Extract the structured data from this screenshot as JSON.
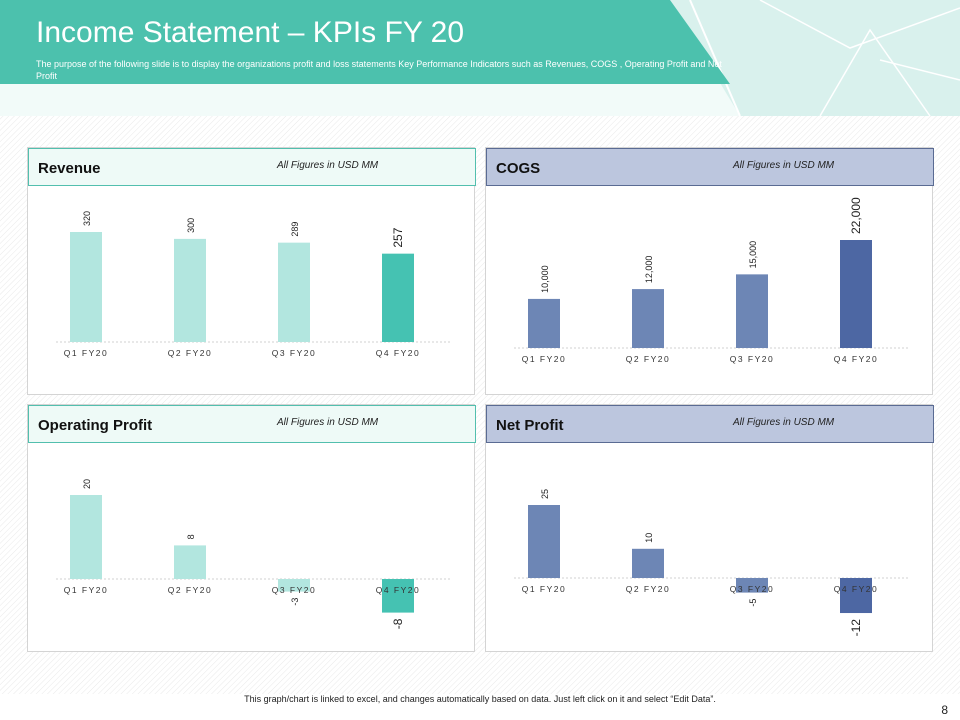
{
  "header": {
    "title": "Income Statement – KPIs FY 20",
    "subtitle": "The purpose of the following slide is to display the organizations profit and loss statements Key Performance Indicators such as Revenues, COGS , Operating Profit and Net Profit"
  },
  "colors": {
    "header_teal": "#4cc1ad",
    "bar_light_teal": "#b2e6df",
    "bar_teal": "#45c2b2",
    "bar_blue": "#6d86b5",
    "bar_dark_blue": "#4d67a3"
  },
  "panels": {
    "revenue": {
      "title": "Revenue",
      "note": "All Figures in USD MM"
    },
    "cogs": {
      "title": "COGS",
      "note": "All Figures in USD MM"
    },
    "operating_profit": {
      "title": "Operating Profit",
      "note": "All Figures in USD MM"
    },
    "net_profit": {
      "title": "Net Profit",
      "note": "All Figures in USD MM"
    }
  },
  "chart_data": [
    {
      "id": "revenue",
      "type": "bar",
      "title": "Revenue",
      "categories": [
        "Q1 FY20",
        "Q2 FY20",
        "Q3 FY20",
        "Q4 FY20"
      ],
      "values": [
        320,
        300,
        289,
        257
      ],
      "labels": [
        "320",
        "300",
        "289",
        "257"
      ],
      "ylim": [
        0,
        340
      ],
      "unit": "USD MM"
    },
    {
      "id": "cogs",
      "type": "bar",
      "title": "COGS",
      "categories": [
        "Q1 FY20",
        "Q2 FY20",
        "Q3 FY20",
        "Q4 FY20"
      ],
      "values": [
        10000,
        12000,
        15000,
        22000
      ],
      "labels": [
        "10,000",
        "12,000",
        "15,000",
        "22,000"
      ],
      "ylim": [
        0,
        26000
      ],
      "unit": "USD MM"
    },
    {
      "id": "operating_profit",
      "type": "bar",
      "title": "Operating Profit",
      "categories": [
        "Q1 FY20",
        "Q2 FY20",
        "Q3 FY20",
        "Q4 FY20"
      ],
      "values": [
        20,
        8,
        -3,
        -8
      ],
      "labels": [
        "20",
        "8",
        "-3",
        "-8"
      ],
      "ylim": [
        -10,
        25
      ],
      "unit": "USD MM"
    },
    {
      "id": "net_profit",
      "type": "bar",
      "title": "Net Profit",
      "categories": [
        "Q1 FY20",
        "Q2 FY20",
        "Q3 FY20",
        "Q4 FY20"
      ],
      "values": [
        25,
        10,
        -5,
        -12
      ],
      "labels": [
        "25",
        "10",
        "-5",
        "-12"
      ],
      "ylim": [
        -15,
        30
      ],
      "unit": "USD MM"
    }
  ],
  "footer": {
    "note": "This graph/chart is linked to excel, and changes automatically based on data. Just left click on it and select “Edit Data”.",
    "page": "8"
  }
}
